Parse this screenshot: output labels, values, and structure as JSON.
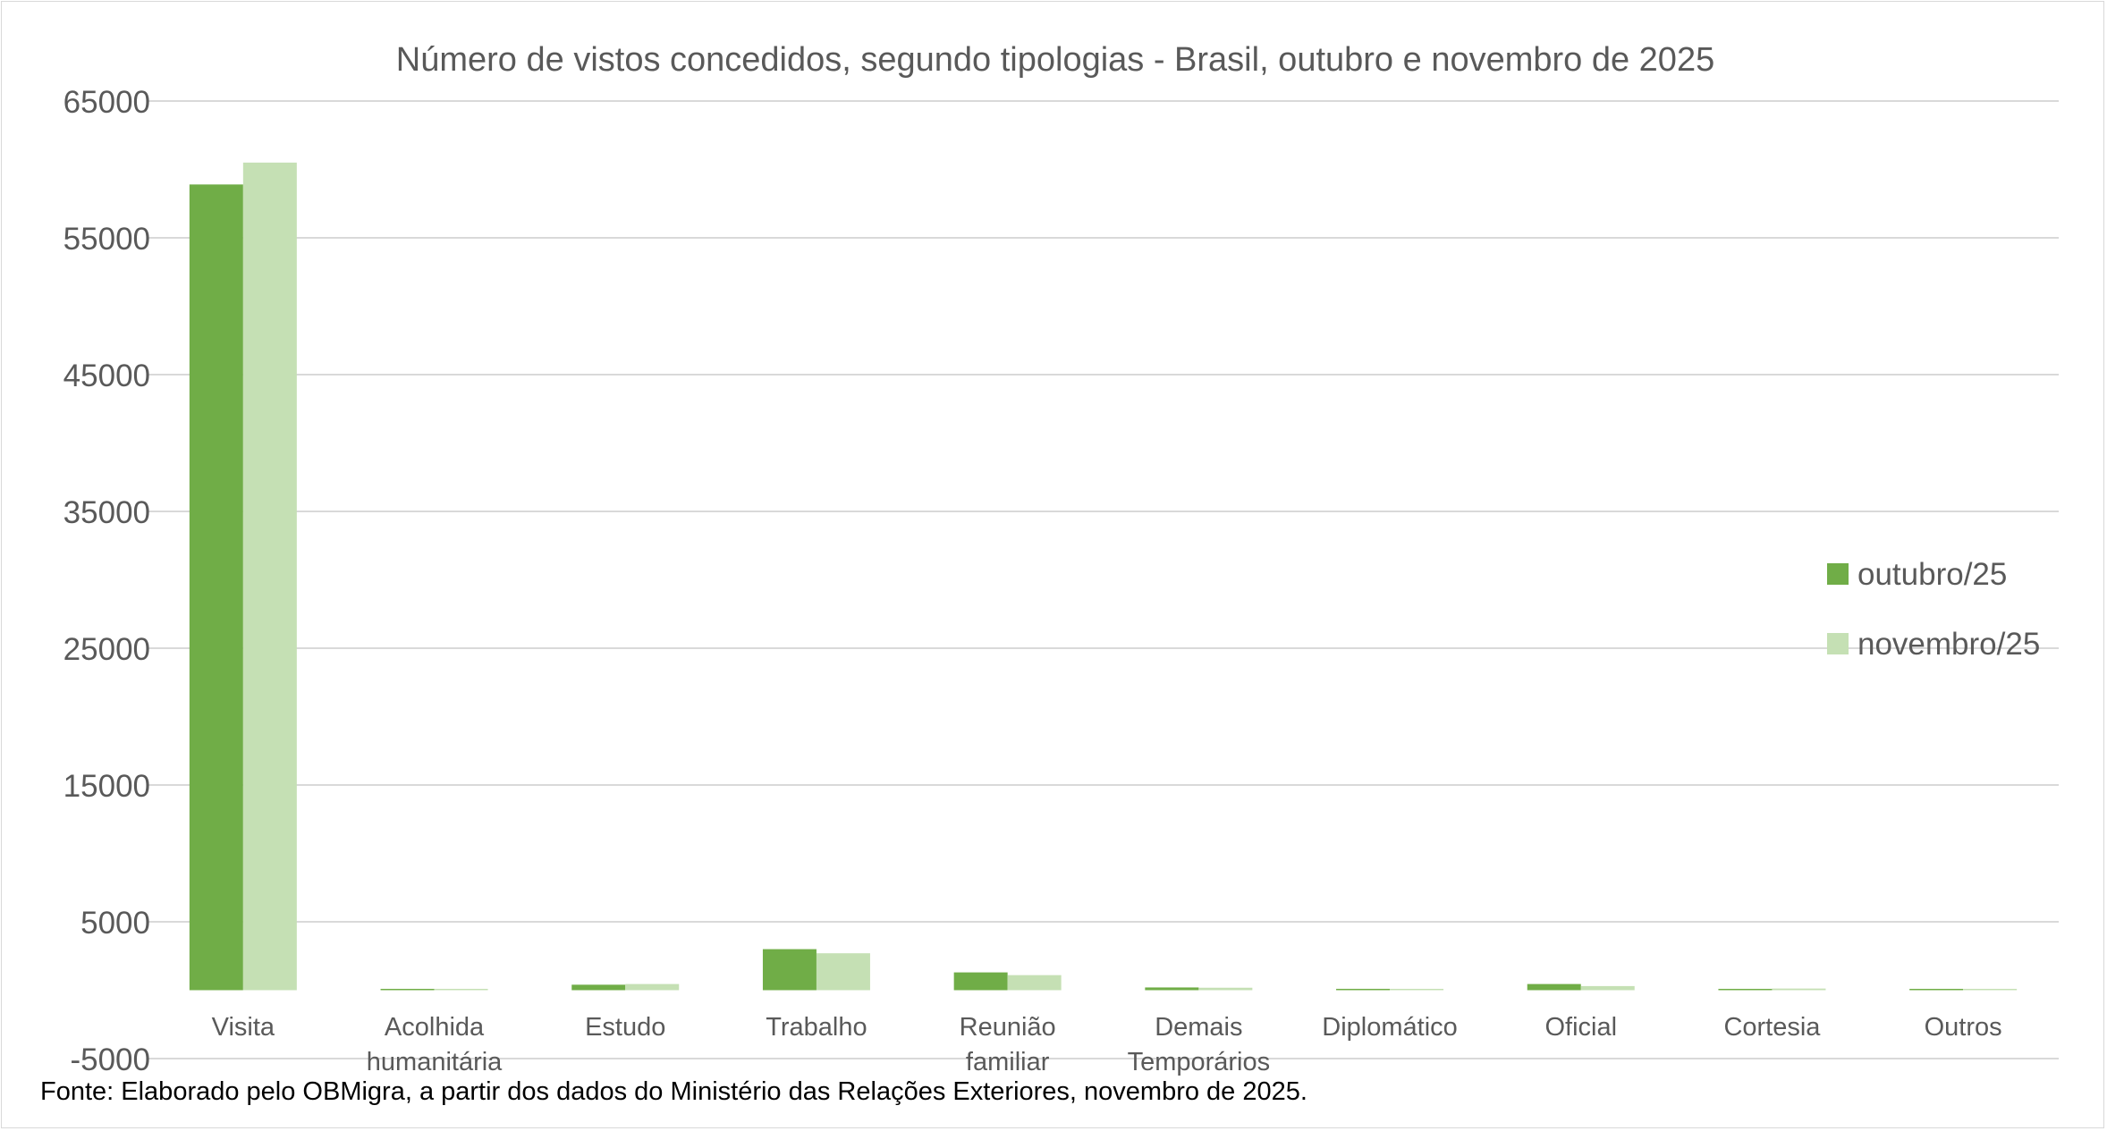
{
  "chart_data": {
    "type": "bar",
    "title": "Número de vistos concedidos, segundo tipologias - Brasil, outubro e novembro de 2025",
    "xlabel": "",
    "ylabel": "",
    "ylim": [
      -5000,
      65000
    ],
    "yticks": [
      -5000,
      5000,
      15000,
      25000,
      35000,
      45000,
      55000,
      65000
    ],
    "ytick_labels": [
      "-5000",
      "5000",
      "15000",
      "25000",
      "35000",
      "45000",
      "55000",
      "65000"
    ],
    "grid": true,
    "legend_position": "right",
    "categories": [
      [
        "Visita"
      ],
      [
        "Acolhida",
        "humanitária"
      ],
      [
        "Estudo"
      ],
      [
        "Trabalho"
      ],
      [
        "Reunião",
        "familiar"
      ],
      [
        "Demais",
        "Temporários"
      ],
      [
        "Diplomático"
      ],
      [
        "Oficial"
      ],
      [
        "Cortesia"
      ],
      [
        "Outros"
      ]
    ],
    "series": [
      {
        "name": "outubro/25",
        "color": "#70ad47",
        "values": [
          58900,
          50,
          400,
          3000,
          1300,
          200,
          100,
          450,
          80,
          30
        ]
      },
      {
        "name": "novembro/25",
        "color": "#c5e0b4",
        "values": [
          60500,
          40,
          450,
          2700,
          1100,
          180,
          60,
          300,
          120,
          20
        ]
      }
    ]
  },
  "source_note": "Fonte: Elaborado pelo OBMigra, a partir dos dados do Ministério das Relações Exteriores, novembro de 2025."
}
